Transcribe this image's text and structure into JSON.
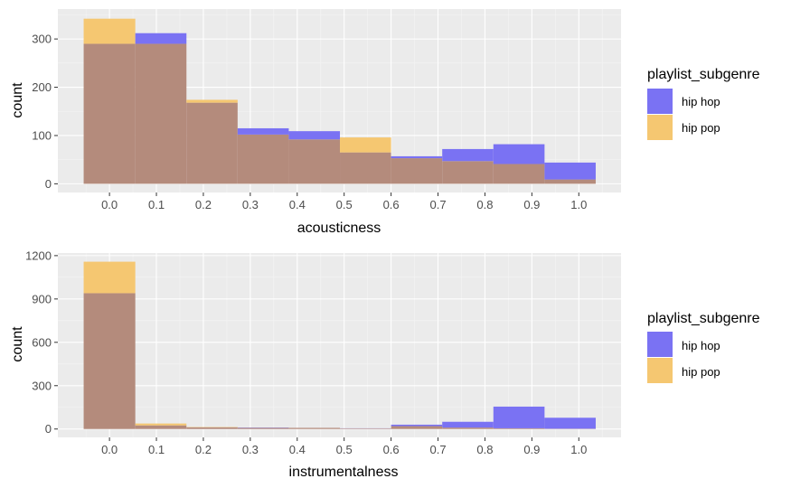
{
  "colors": {
    "panel": "#ebebeb",
    "grid_major": "#ffffff",
    "grid_minor": "#f4f4f4",
    "hip_hop": "#7a72f3",
    "hip_pop": "#f5c771",
    "overlap": "#b48b7c"
  },
  "chart_data": [
    {
      "type": "bar",
      "subtype": "overlaid-histogram",
      "xlabel": "acousticness",
      "ylabel": "count",
      "xlim": [
        -0.11,
        1.09
      ],
      "ylim": [
        -18,
        362
      ],
      "x_ticks": [
        0.0,
        0.1,
        0.2,
        0.3,
        0.4,
        0.5,
        0.6,
        0.7,
        0.8,
        0.9,
        1.0
      ],
      "x_tick_labels": [
        "0.0",
        "0.1",
        "0.2",
        "0.3",
        "0.4",
        "0.5",
        "0.6",
        "0.7",
        "0.8",
        "0.9",
        "1.0"
      ],
      "y_ticks": [
        0,
        100,
        200,
        300
      ],
      "y_tick_labels": [
        "0",
        "100",
        "200",
        "300"
      ],
      "grid": true,
      "legend_position": "right",
      "legend_title": "playlist_subgenre",
      "bin_edges": [
        -0.055,
        0.055,
        0.164,
        0.273,
        0.382,
        0.491,
        0.6,
        0.709,
        0.818,
        0.927,
        1.036
      ],
      "bin_centers": [
        0.0,
        0.109,
        0.218,
        0.327,
        0.436,
        0.545,
        0.655,
        0.764,
        0.873,
        0.982
      ],
      "series": [
        {
          "name": "hip hop",
          "values": [
            290,
            312,
            168,
            115,
            109,
            65,
            57,
            72,
            82,
            44
          ]
        },
        {
          "name": "hip pop",
          "values": [
            342,
            290,
            174,
            102,
            92,
            96,
            53,
            47,
            41,
            9
          ]
        }
      ]
    },
    {
      "type": "bar",
      "subtype": "overlaid-histogram",
      "xlabel": "instrumentalness",
      "ylabel": "count",
      "xlim": [
        -0.11,
        1.09
      ],
      "ylim": [
        -58,
        1218
      ],
      "x_ticks": [
        0.0,
        0.1,
        0.2,
        0.3,
        0.4,
        0.5,
        0.6,
        0.7,
        0.8,
        0.9,
        1.0
      ],
      "x_tick_labels": [
        "0.0",
        "0.1",
        "0.2",
        "0.3",
        "0.4",
        "0.5",
        "0.6",
        "0.7",
        "0.8",
        "0.9",
        "1.0"
      ],
      "y_ticks": [
        0,
        300,
        600,
        900,
        1200
      ],
      "y_tick_labels": [
        "0",
        "300",
        "600",
        "900",
        "1200"
      ],
      "grid": true,
      "legend_position": "right",
      "legend_title": "playlist_subgenre",
      "bin_edges": [
        -0.055,
        0.055,
        0.164,
        0.273,
        0.382,
        0.491,
        0.6,
        0.709,
        0.818,
        0.927,
        1.036
      ],
      "bin_centers": [
        0.0,
        0.109,
        0.218,
        0.327,
        0.436,
        0.545,
        0.655,
        0.764,
        0.873,
        0.982
      ],
      "series": [
        {
          "name": "hip hop",
          "values": [
            940,
            25,
            12,
            10,
            8,
            5,
            30,
            50,
            155,
            78
          ]
        },
        {
          "name": "hip pop",
          "values": [
            1158,
            38,
            14,
            8,
            8,
            4,
            20,
            10,
            5,
            2
          ]
        }
      ]
    }
  ]
}
